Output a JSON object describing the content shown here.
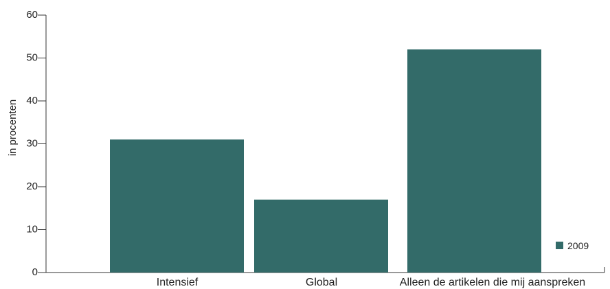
{
  "chart_data": {
    "type": "bar",
    "title": "",
    "xlabel": "",
    "ylabel": "in procenten",
    "ylim": [
      0,
      60
    ],
    "yticks": [
      0,
      10,
      20,
      30,
      40,
      50,
      60
    ],
    "categories": [
      "Intensief",
      "Global",
      "Alleen de artikelen die mij aanspreken"
    ],
    "series": [
      {
        "name": "2009",
        "values": [
          31,
          17,
          52
        ]
      }
    ],
    "colors": {
      "bar": "#336b69",
      "axis": "#333333"
    },
    "grid": false,
    "legend_position": "bottom-right"
  }
}
